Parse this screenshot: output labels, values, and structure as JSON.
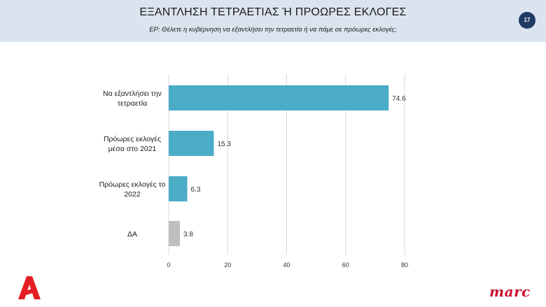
{
  "header": {
    "title": "ΕΞΑΝΤΛΗΣΗ ΤΕΤΡΑΕΤΙΑΣ Ή ΠΡΟΩΡΕΣ ΕΚΛΟΓΕΣ",
    "subtitle": "ΕΡ: Θέλετε η κυβέρνηση να εξαντλήσει την τετραετία ή να πάμε σε πρόωρες εκλογές;",
    "page_number": "17"
  },
  "brand": {
    "left_logo": "alpha-logo-icon",
    "right_logo_text": "marc",
    "logo_color": "#c8102e"
  },
  "chart_data": {
    "type": "bar",
    "orientation": "horizontal",
    "categories": [
      [
        "Να εξαντλήσει την",
        "τετραετία"
      ],
      [
        "Πρόωρες εκλογές",
        "μέσα στο 2021"
      ],
      [
        "Πρόωρες εκλογές το",
        "2022"
      ],
      [
        "ΔΑ"
      ]
    ],
    "values": [
      74.6,
      15.3,
      6.3,
      3.8
    ],
    "bar_colors": [
      "#4bacc6",
      "#4bacc6",
      "#4bacc6",
      "#bfbfbf"
    ],
    "xlim": [
      0,
      80
    ],
    "xticks": [
      0,
      20,
      40,
      60,
      80
    ],
    "grid": true
  }
}
